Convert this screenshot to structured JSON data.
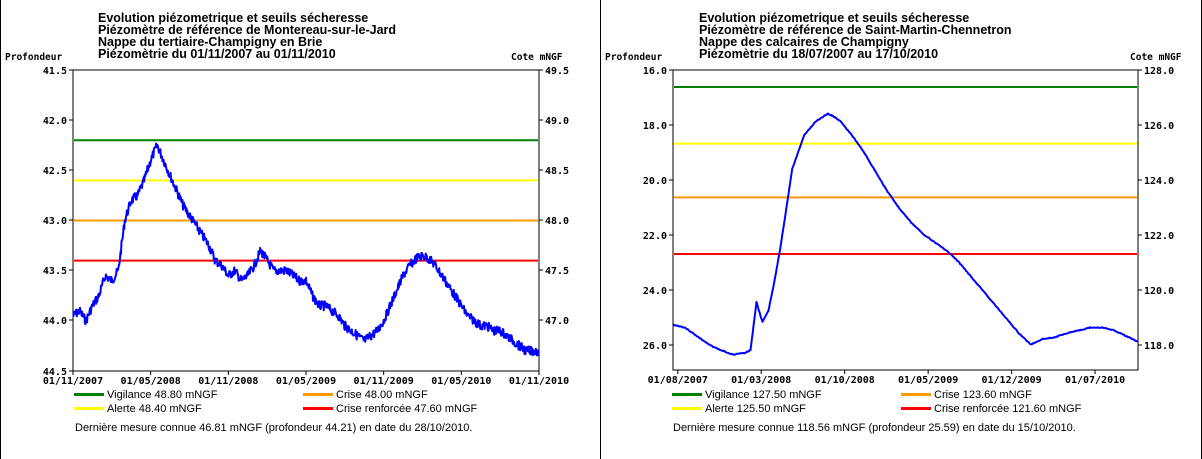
{
  "chart_data": [
    {
      "type": "line",
      "title": [
        "Evolution piézometrique et seuils sécheresse",
        "Piézomètre de référence de Montereau-sur-le-Jard",
        "Nappe du tertiaire-Champigny en Brie",
        "Piézomètrie du 01/11/2007 au 01/11/2010"
      ],
      "ylabel_left": "Profondeur",
      "ylabel_right": "Cote mNGF",
      "ylim_left": [
        41.5,
        44.5
      ],
      "left_ticks": [
        "41.5",
        "42.0",
        "42.5",
        "43.0",
        "43.5",
        "44.0",
        "44.5"
      ],
      "right_ticks": [
        "49.5",
        "49.0",
        "48.5",
        "48.0",
        "47.5",
        "47.0"
      ],
      "x_ticks": [
        "01/11/2007",
        "01/05/2008",
        "01/11/2008",
        "01/05/2009",
        "01/11/2009",
        "01/05/2010",
        "01/11/2010"
      ],
      "thresholds": [
        {
          "label": "Vigilance 48.80 mNGF",
          "depth": 42.2,
          "color": "#008000"
        },
        {
          "label": "Crise 48.00 mNGF",
          "depth": 43.0,
          "color": "#ff9900"
        },
        {
          "label": "Alerte 48.40 mNGF",
          "depth": 42.6,
          "color": "#ffff00"
        },
        {
          "label": "Crise renforcée 47.60 mNGF",
          "depth": 43.4,
          "color": "#ff0000"
        }
      ],
      "series": {
        "color": "#0000ff",
        "x_months": [
          0,
          0.5,
          1,
          1.5,
          2,
          2.5,
          3,
          3.5,
          4,
          4.5,
          5,
          5.5,
          6,
          6.5,
          7,
          7.5,
          8,
          8.5,
          9,
          9.5,
          10,
          10.5,
          11,
          11.5,
          12,
          12.5,
          13,
          13.5,
          14,
          14.5,
          15,
          15.5,
          16,
          16.5,
          17,
          17.5,
          18,
          18.5,
          19,
          19.5,
          20,
          20.5,
          21,
          21.5,
          22,
          22.5,
          23,
          23.5,
          24,
          24.5,
          25,
          25.5,
          26,
          26.5,
          27,
          27.5,
          28,
          28.5,
          29,
          29.5,
          30,
          30.5,
          31,
          31.5,
          32,
          32.5,
          33,
          33.5,
          34,
          34.5,
          35,
          35.5,
          36
        ],
        "depth": [
          43.95,
          43.9,
          44.0,
          43.85,
          43.75,
          43.55,
          43.6,
          43.5,
          43.0,
          42.8,
          42.75,
          42.6,
          42.4,
          42.25,
          42.4,
          42.55,
          42.7,
          42.85,
          42.95,
          43.05,
          43.15,
          43.25,
          43.4,
          43.45,
          43.55,
          43.5,
          43.6,
          43.55,
          43.45,
          43.3,
          43.4,
          43.5,
          43.5,
          43.5,
          43.55,
          43.6,
          43.6,
          43.75,
          43.85,
          43.85,
          43.9,
          43.95,
          44.05,
          44.1,
          44.15,
          44.2,
          44.15,
          44.1,
          44.0,
          43.85,
          43.7,
          43.55,
          43.45,
          43.38,
          43.35,
          43.38,
          43.45,
          43.55,
          43.65,
          43.75,
          43.85,
          43.95,
          44.0,
          44.05,
          44.05,
          44.1,
          44.1,
          44.15,
          44.2,
          44.25,
          44.3,
          44.3,
          44.3
        ]
      },
      "legend": [
        "Vigilance 48.80 mNGF",
        "Crise 48.00 mNGF",
        "Alerte 48.40 mNGF",
        "Crise renforcée 47.60 mNGF"
      ],
      "note": "Dernière mesure connue 46.81 mNGF (profondeur  44.21) en date du 28/10/2010."
    },
    {
      "type": "line",
      "title": [
        "Evolution piézometrique et seuils sécheresse",
        "Piézomètre de référence de Saint-Martin-Chennetron",
        "Nappe des calcaires de Champigny",
        "Piézomètrie du 18/07/2007 au 17/10/2010"
      ],
      "ylabel_left": "Profondeur",
      "ylabel_right": "Cote mNGF",
      "ylim_left": [
        16.0,
        26.6
      ],
      "left_ticks": [
        "16.0",
        "18.0",
        "20.0",
        "22.0",
        "24.0",
        "26.0"
      ],
      "right_ticks": [
        "128.0",
        "126.0",
        "124.0",
        "122.0",
        "120.0",
        "118.0"
      ],
      "x_ticks": [
        "01/08/2007",
        "01/03/2008",
        "01/10/2008",
        "01/05/2009",
        "01/12/2009",
        "01/07/2010"
      ],
      "thresholds": [
        {
          "label": "Vigilance 127.50 mNGF",
          "depth": 16.6,
          "color": "#008000"
        },
        {
          "label": "Crise 123.60 mNGF",
          "depth": 20.5,
          "color": "#ff9900"
        },
        {
          "label": "Alerte 125.50 mNGF",
          "depth": 18.6,
          "color": "#ffff00"
        },
        {
          "label": "Crise renforcée 121.60 mNGF",
          "depth": 22.5,
          "color": "#ff0000"
        }
      ],
      "series": {
        "color": "#0000ff",
        "x_months": [
          0,
          1,
          2,
          3,
          4,
          5,
          6,
          6.5,
          7,
          7.5,
          8,
          8.5,
          9,
          10,
          11,
          12,
          13,
          13.5,
          14,
          15,
          16,
          17,
          18,
          19,
          20,
          21,
          22,
          23,
          24,
          25,
          26,
          27,
          28,
          29,
          30,
          31,
          32,
          33,
          34,
          35,
          36,
          37,
          38,
          39
        ],
        "depth": [
          25.0,
          25.1,
          25.4,
          25.7,
          25.9,
          26.05,
          26.0,
          25.9,
          24.2,
          24.9,
          24.5,
          23.5,
          22.3,
          19.5,
          18.3,
          17.8,
          17.55,
          17.65,
          17.8,
          18.3,
          18.9,
          19.6,
          20.3,
          20.9,
          21.4,
          21.8,
          22.1,
          22.4,
          22.8,
          23.3,
          23.8,
          24.3,
          24.8,
          25.3,
          25.7,
          25.5,
          25.45,
          25.3,
          25.2,
          25.1,
          25.1,
          25.2,
          25.4,
          25.6
        ]
      },
      "legend": [
        "Vigilance 127.50 mNGF",
        "Crise 123.60 mNGF",
        "Alerte 125.50 mNGF",
        "Crise renforcée 121.60 mNGF"
      ],
      "note": "Dernière mesure connue 118.56 mNGF (profondeur  25.59) en date du 15/10/2010."
    }
  ]
}
